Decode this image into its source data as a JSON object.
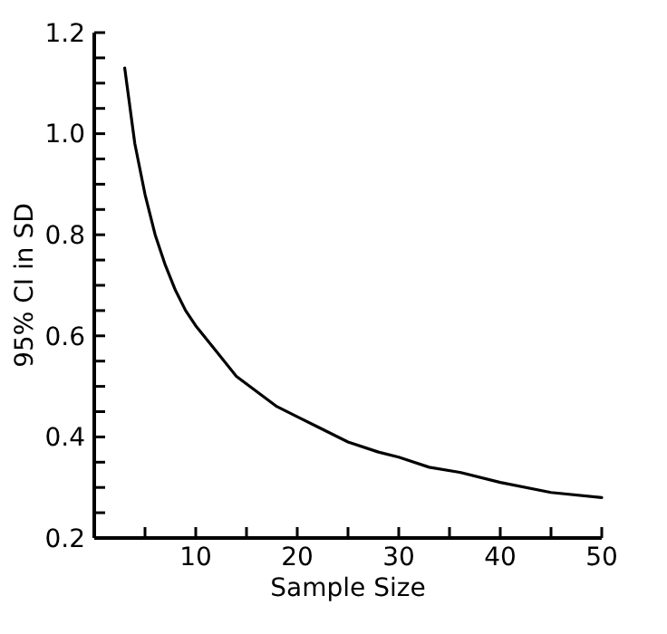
{
  "chart_data": {
    "type": "line",
    "xlabel": "Sample Size",
    "ylabel": "95% CI in SD",
    "x": [
      3,
      4,
      5,
      6,
      7,
      8,
      9,
      10,
      12,
      14,
      16,
      18,
      20,
      22,
      25,
      28,
      30,
      33,
      36,
      40,
      45,
      50
    ],
    "series": [
      {
        "color": "#000000",
        "values": [
          1.13,
          0.98,
          0.88,
          0.8,
          0.74,
          0.69,
          0.65,
          0.62,
          0.57,
          0.52,
          0.49,
          0.46,
          0.44,
          0.42,
          0.39,
          0.37,
          0.36,
          0.34,
          0.33,
          0.31,
          0.29,
          0.28
        ]
      }
    ],
    "xlim": [
      0,
      50
    ],
    "ylim": [
      0.2,
      1.2
    ],
    "xticks": [
      {
        "value": 5,
        "label": null
      },
      10,
      {
        "value": 15,
        "label": null
      },
      20,
      {
        "value": 25,
        "label": null
      },
      30,
      {
        "value": 35,
        "label": null
      },
      40,
      {
        "value": 45,
        "label": null
      },
      50
    ],
    "yticks": [
      0.2,
      {
        "value": 0.25,
        "label": null
      },
      {
        "value": 0.3,
        "label": null
      },
      {
        "value": 0.35,
        "label": null
      },
      0.4,
      {
        "value": 0.45,
        "label": null
      },
      {
        "value": 0.5,
        "label": null
      },
      {
        "value": 0.55,
        "label": null
      },
      0.6,
      {
        "value": 0.65,
        "label": null
      },
      {
        "value": 0.7,
        "label": null
      },
      {
        "value": 0.75,
        "label": null
      },
      0.8,
      {
        "value": 0.85,
        "label": null
      },
      {
        "value": 0.9,
        "label": null
      },
      {
        "value": 0.95,
        "label": null
      },
      {
        "value": 1.0,
        "label": "1.0"
      },
      {
        "value": 1.05,
        "label": null
      },
      {
        "value": 1.1,
        "label": null
      },
      {
        "value": 1.15,
        "label": null
      },
      1.2
    ],
    "marker": "none",
    "line_style": "solid"
  }
}
